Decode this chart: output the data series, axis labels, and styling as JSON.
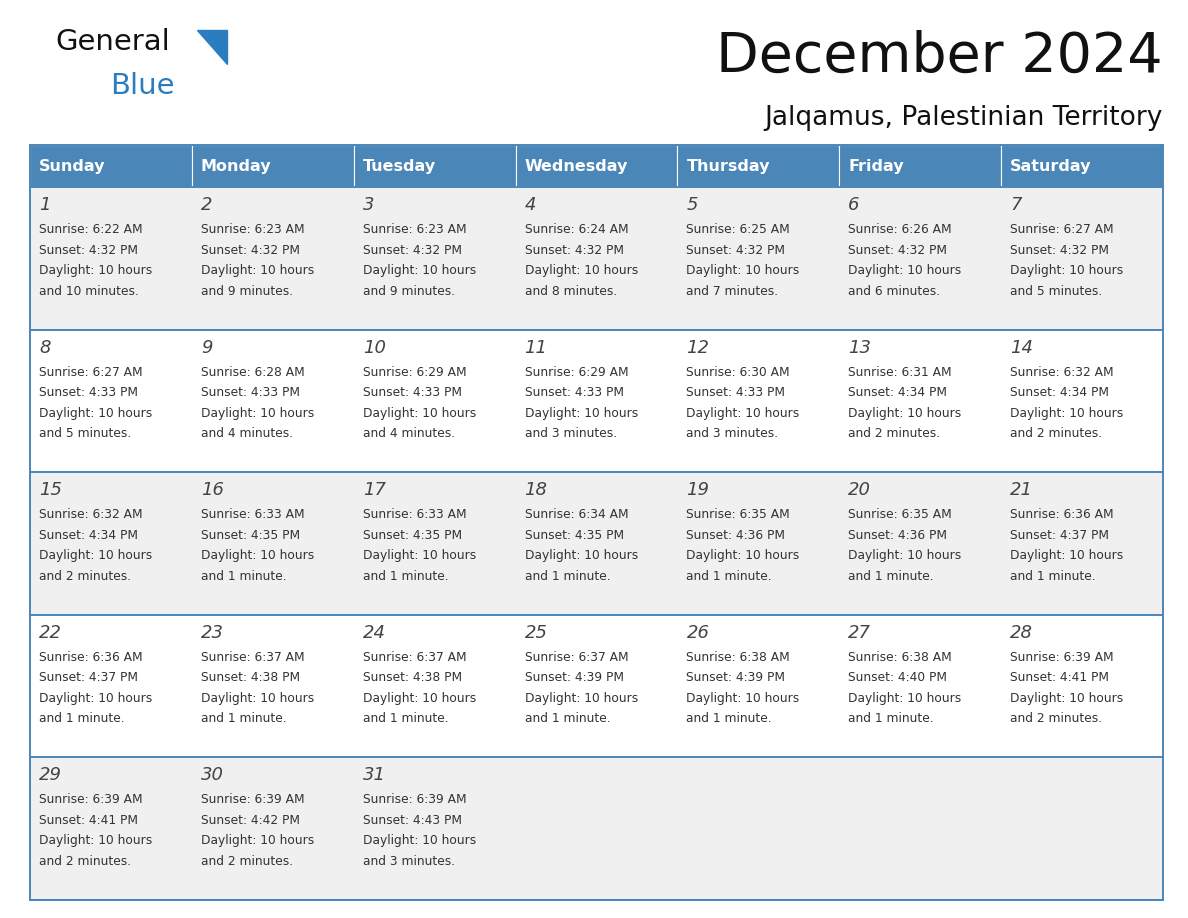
{
  "title": "December 2024",
  "subtitle": "Jalqamus, Palestinian Territory",
  "days_of_week": [
    "Sunday",
    "Monday",
    "Tuesday",
    "Wednesday",
    "Thursday",
    "Friday",
    "Saturday"
  ],
  "header_bg_color": "#4a86b8",
  "header_text_color": "#ffffff",
  "row_bg_even": "#f0f0f0",
  "row_bg_odd": "#ffffff",
  "separator_color": "#4a86b8",
  "day_number_color": "#444444",
  "cell_text_color": "#333333",
  "calendar_data": [
    [
      {
        "day": 1,
        "sunrise": "6:22 AM",
        "sunset": "4:32 PM",
        "daylight": "10 hours and 10 minutes."
      },
      {
        "day": 2,
        "sunrise": "6:23 AM",
        "sunset": "4:32 PM",
        "daylight": "10 hours and 9 minutes."
      },
      {
        "day": 3,
        "sunrise": "6:23 AM",
        "sunset": "4:32 PM",
        "daylight": "10 hours and 9 minutes."
      },
      {
        "day": 4,
        "sunrise": "6:24 AM",
        "sunset": "4:32 PM",
        "daylight": "10 hours and 8 minutes."
      },
      {
        "day": 5,
        "sunrise": "6:25 AM",
        "sunset": "4:32 PM",
        "daylight": "10 hours and 7 minutes."
      },
      {
        "day": 6,
        "sunrise": "6:26 AM",
        "sunset": "4:32 PM",
        "daylight": "10 hours and 6 minutes."
      },
      {
        "day": 7,
        "sunrise": "6:27 AM",
        "sunset": "4:32 PM",
        "daylight": "10 hours and 5 minutes."
      }
    ],
    [
      {
        "day": 8,
        "sunrise": "6:27 AM",
        "sunset": "4:33 PM",
        "daylight": "10 hours and 5 minutes."
      },
      {
        "day": 9,
        "sunrise": "6:28 AM",
        "sunset": "4:33 PM",
        "daylight": "10 hours and 4 minutes."
      },
      {
        "day": 10,
        "sunrise": "6:29 AM",
        "sunset": "4:33 PM",
        "daylight": "10 hours and 4 minutes."
      },
      {
        "day": 11,
        "sunrise": "6:29 AM",
        "sunset": "4:33 PM",
        "daylight": "10 hours and 3 minutes."
      },
      {
        "day": 12,
        "sunrise": "6:30 AM",
        "sunset": "4:33 PM",
        "daylight": "10 hours and 3 minutes."
      },
      {
        "day": 13,
        "sunrise": "6:31 AM",
        "sunset": "4:34 PM",
        "daylight": "10 hours and 2 minutes."
      },
      {
        "day": 14,
        "sunrise": "6:32 AM",
        "sunset": "4:34 PM",
        "daylight": "10 hours and 2 minutes."
      }
    ],
    [
      {
        "day": 15,
        "sunrise": "6:32 AM",
        "sunset": "4:34 PM",
        "daylight": "10 hours and 2 minutes."
      },
      {
        "day": 16,
        "sunrise": "6:33 AM",
        "sunset": "4:35 PM",
        "daylight": "10 hours and 1 minute."
      },
      {
        "day": 17,
        "sunrise": "6:33 AM",
        "sunset": "4:35 PM",
        "daylight": "10 hours and 1 minute."
      },
      {
        "day": 18,
        "sunrise": "6:34 AM",
        "sunset": "4:35 PM",
        "daylight": "10 hours and 1 minute."
      },
      {
        "day": 19,
        "sunrise": "6:35 AM",
        "sunset": "4:36 PM",
        "daylight": "10 hours and 1 minute."
      },
      {
        "day": 20,
        "sunrise": "6:35 AM",
        "sunset": "4:36 PM",
        "daylight": "10 hours and 1 minute."
      },
      {
        "day": 21,
        "sunrise": "6:36 AM",
        "sunset": "4:37 PM",
        "daylight": "10 hours and 1 minute."
      }
    ],
    [
      {
        "day": 22,
        "sunrise": "6:36 AM",
        "sunset": "4:37 PM",
        "daylight": "10 hours and 1 minute."
      },
      {
        "day": 23,
        "sunrise": "6:37 AM",
        "sunset": "4:38 PM",
        "daylight": "10 hours and 1 minute."
      },
      {
        "day": 24,
        "sunrise": "6:37 AM",
        "sunset": "4:38 PM",
        "daylight": "10 hours and 1 minute."
      },
      {
        "day": 25,
        "sunrise": "6:37 AM",
        "sunset": "4:39 PM",
        "daylight": "10 hours and 1 minute."
      },
      {
        "day": 26,
        "sunrise": "6:38 AM",
        "sunset": "4:39 PM",
        "daylight": "10 hours and 1 minute."
      },
      {
        "day": 27,
        "sunrise": "6:38 AM",
        "sunset": "4:40 PM",
        "daylight": "10 hours and 1 minute."
      },
      {
        "day": 28,
        "sunrise": "6:39 AM",
        "sunset": "4:41 PM",
        "daylight": "10 hours and 2 minutes."
      }
    ],
    [
      {
        "day": 29,
        "sunrise": "6:39 AM",
        "sunset": "4:41 PM",
        "daylight": "10 hours and 2 minutes."
      },
      {
        "day": 30,
        "sunrise": "6:39 AM",
        "sunset": "4:42 PM",
        "daylight": "10 hours and 2 minutes."
      },
      {
        "day": 31,
        "sunrise": "6:39 AM",
        "sunset": "4:43 PM",
        "daylight": "10 hours and 3 minutes."
      },
      null,
      null,
      null,
      null
    ]
  ]
}
